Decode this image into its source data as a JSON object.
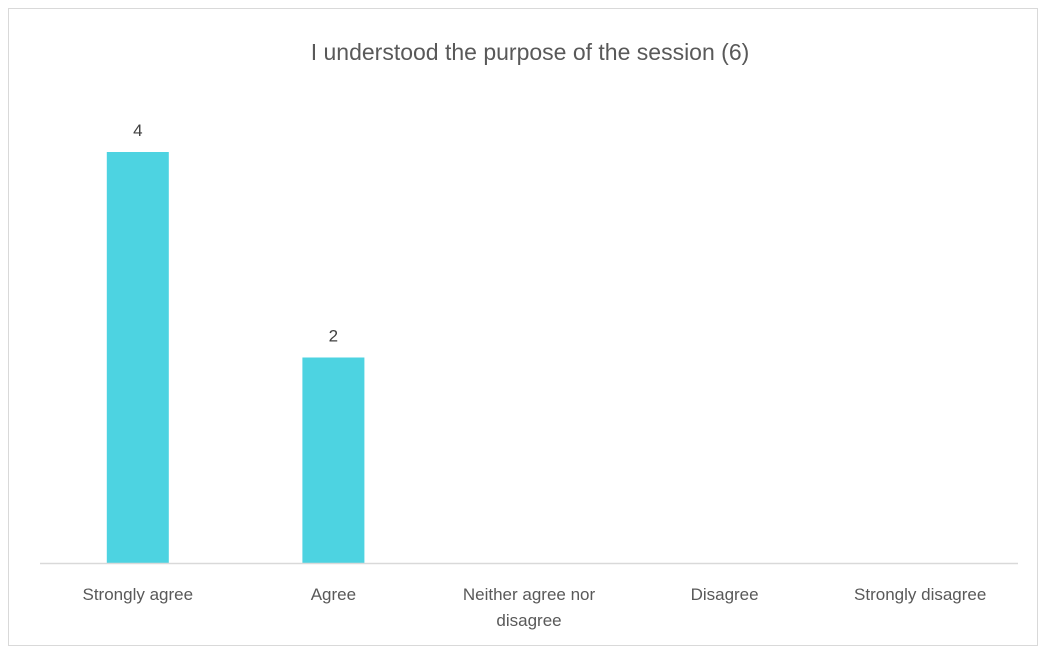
{
  "chart_data": {
    "type": "bar",
    "title": "I understood the purpose of the session (6)",
    "categories": [
      "Strongly agree",
      "Agree",
      "Neither agree nor disagree",
      "Disagree",
      "Strongly disagree"
    ],
    "category_lines": [
      [
        "Strongly agree"
      ],
      [
        "Agree"
      ],
      [
        "Neither agree nor",
        "disagree"
      ],
      [
        "Disagree"
      ],
      [
        "Strongly disagree"
      ]
    ],
    "values": [
      4,
      2,
      0,
      0,
      0
    ],
    "data_labels": [
      "4",
      "2",
      "",
      "",
      ""
    ],
    "xlabel": "",
    "ylabel": "",
    "ylim": [
      0,
      4
    ],
    "grid": false,
    "legend": "none",
    "bar_color": "#4DD3E1",
    "axis_color": "#d9d9d9"
  }
}
